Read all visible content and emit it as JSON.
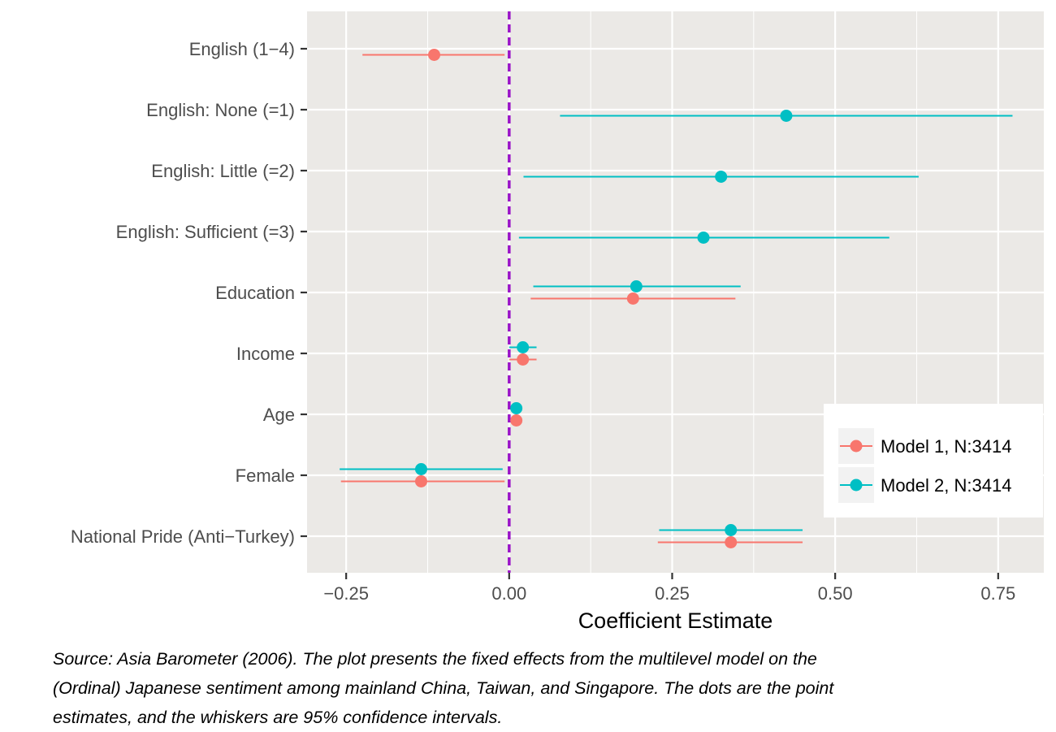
{
  "chart_data": {
    "type": "scatter",
    "subtype": "coefficient-plot",
    "xlabel": "Coefficient Estimate",
    "ylabel": "",
    "xlim": [
      -0.31,
      0.82
    ],
    "x_ticks": [
      -0.25,
      0.0,
      0.25,
      0.5,
      0.75
    ],
    "x_tick_labels": [
      "−0.25",
      "0.00",
      "0.25",
      "0.50",
      "0.75"
    ],
    "reference_line": {
      "x": 0,
      "style": "dashed",
      "color": "#9a14c8"
    },
    "categories": [
      "English (1−4)",
      "English: None (=1)",
      "English: Little (=2)",
      "English: Sufficient (=3)",
      "Education",
      "Income",
      "Age",
      "Female",
      "National Pride (Anti−Turkey)"
    ],
    "series": [
      {
        "name": "Model 1, N:3414",
        "color": "#f8766d",
        "points": [
          {
            "category": "English (1−4)",
            "estimate": -0.115,
            "lower": -0.225,
            "upper": -0.007
          },
          {
            "category": "Education",
            "estimate": 0.19,
            "lower": 0.033,
            "upper": 0.347
          },
          {
            "category": "Income",
            "estimate": 0.021,
            "lower": 0.0,
            "upper": 0.042
          },
          {
            "category": "Age",
            "estimate": 0.011,
            "lower": 0.005,
            "upper": 0.017
          },
          {
            "category": "Female",
            "estimate": -0.135,
            "lower": -0.258,
            "upper": -0.007
          },
          {
            "category": "National Pride (Anti−Turkey)",
            "estimate": 0.34,
            "lower": 0.228,
            "upper": 0.45
          }
        ]
      },
      {
        "name": "Model 2, N:3414",
        "color": "#00bfc4",
        "points": [
          {
            "category": "English: None (=1)",
            "estimate": 0.425,
            "lower": 0.078,
            "upper": 0.772
          },
          {
            "category": "English: Little (=2)",
            "estimate": 0.325,
            "lower": 0.022,
            "upper": 0.628
          },
          {
            "category": "English: Sufficient (=3)",
            "estimate": 0.298,
            "lower": 0.015,
            "upper": 0.583
          },
          {
            "category": "Education",
            "estimate": 0.195,
            "lower": 0.037,
            "upper": 0.355
          },
          {
            "category": "Income",
            "estimate": 0.021,
            "lower": 0.0,
            "upper": 0.042
          },
          {
            "category": "Age",
            "estimate": 0.011,
            "lower": 0.005,
            "upper": 0.017
          },
          {
            "category": "Female",
            "estimate": -0.135,
            "lower": -0.26,
            "upper": -0.01
          },
          {
            "category": "National Pride (Anti−Turkey)",
            "estimate": 0.34,
            "lower": 0.23,
            "upper": 0.45
          }
        ]
      }
    ],
    "legend_position": "right, lower",
    "grid": true,
    "panel_background": "#ebe9e6"
  },
  "caption": [
    "Source: Asia Barometer (2006). The plot presents the fixed effects from the multilevel model on the",
    "(Ordinal) Japanese sentiment among mainland China, Taiwan, and Singapore. The dots are the point",
    "estimates, and the whiskers are 95% confidence intervals."
  ]
}
